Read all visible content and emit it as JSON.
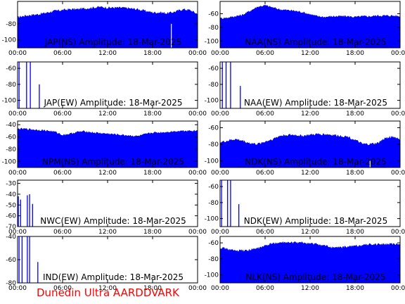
{
  "footer": "Dunedin Ultra AARDDVARK",
  "colors": {
    "fill": "#0000ff",
    "spike": "#ffffff",
    "axis": "#000000",
    "footer": "#ff0000"
  },
  "chart_data": [
    {
      "type": "area",
      "title": "JAP(NS) Amplitude: 18-Mar-2025",
      "x_ticks": [
        "00:00",
        "06:00",
        "12:00",
        "18:00",
        "00:00"
      ],
      "x_range_hours": [
        0,
        24
      ],
      "y_ticks": [
        -80,
        -100
      ],
      "ylim": [
        -110,
        -52
      ],
      "series": [
        {
          "x": [
            0,
            1,
            2,
            3,
            4,
            5,
            6,
            7,
            8,
            9,
            10,
            11,
            12,
            13,
            14,
            15,
            16,
            17,
            18,
            19,
            20,
            21,
            22,
            23,
            24
          ],
          "y": [
            -72,
            -70,
            -69,
            -68,
            -66,
            -64,
            -63,
            -62,
            -62,
            -61,
            -60,
            -59,
            -60,
            -60,
            -60,
            -61,
            -62,
            -64,
            -66,
            -66,
            -67,
            -65,
            -62,
            -63,
            -68
          ]
        }
      ],
      "spikes": [
        {
          "x": 20.5,
          "y": -80
        }
      ]
    },
    {
      "type": "area",
      "title": "NAA(NS) Amplitude: 18-Mar-2025",
      "x_ticks": [
        "00:00",
        "06:00",
        "12:00",
        "18:00",
        "00:00"
      ],
      "x_range_hours": [
        0,
        24
      ],
      "y_ticks": [
        -60,
        -80,
        -100
      ],
      "ylim": [
        -110,
        -42
      ],
      "series": [
        {
          "x": [
            0,
            1,
            2,
            3,
            4,
            5,
            6,
            7,
            8,
            9,
            10,
            11,
            12,
            13,
            14,
            15,
            16,
            17,
            18,
            19,
            20,
            21,
            22,
            23,
            24
          ],
          "y": [
            -67,
            -66,
            -64,
            -62,
            -56,
            -50,
            -48,
            -51,
            -54,
            -55,
            -56,
            -58,
            -61,
            -64,
            -65,
            -64,
            -64,
            -64,
            -65,
            -64,
            -64,
            -63,
            -63,
            -63,
            -64
          ]
        }
      ],
      "spikes": [
        {
          "x": 20.2,
          "y": -110
        }
      ]
    },
    {
      "type": "area",
      "title": "JAP(EW) Amplitude: 18-Mar-2025",
      "x_ticks": [
        "00:00",
        "06:00",
        "12:00",
        "18:00",
        "00:00"
      ],
      "x_range_hours": [
        0,
        24
      ],
      "y_ticks": [
        -60,
        -80,
        -100
      ],
      "ylim": [
        -110,
        -52
      ],
      "series": [],
      "spikes": [
        {
          "x": 0.2,
          "y": -52
        },
        {
          "x": 1.2,
          "y": -52
        },
        {
          "x": 1.7,
          "y": -52
        },
        {
          "x": 2.9,
          "y": -80
        }
      ]
    },
    {
      "type": "area",
      "title": "NAA(EW) Amplitude: 18-Mar-2025",
      "x_ticks": [
        "00:00",
        "06:00",
        "12:00",
        "18:00",
        "00:00"
      ],
      "x_range_hours": [
        0,
        24
      ],
      "y_ticks": [
        -60,
        -80,
        -100
      ],
      "ylim": [
        -110,
        -52
      ],
      "series": [],
      "spikes": [
        {
          "x": 0.3,
          "y": -52
        },
        {
          "x": 0.8,
          "y": -52
        },
        {
          "x": 1.4,
          "y": -52
        },
        {
          "x": 2.7,
          "y": -82
        }
      ]
    },
    {
      "type": "area",
      "title": "NPM(NS) Amplitude: 18-Mar-2025",
      "x_ticks": [
        "00:00",
        "06:00",
        "12:00",
        "18:00",
        "00:00"
      ],
      "x_range_hours": [
        0,
        24
      ],
      "y_ticks": [
        -40,
        -60,
        -80,
        -100
      ],
      "ylim": [
        -110,
        -34
      ],
      "series": [
        {
          "x": [
            0,
            1,
            2,
            3,
            4,
            5,
            6,
            7,
            8,
            9,
            10,
            11,
            12,
            13,
            14,
            15,
            16,
            17,
            18,
            19,
            20,
            21,
            22,
            23,
            24
          ],
          "y": [
            -47,
            -47,
            -48,
            -49,
            -50,
            -52,
            -57,
            -55,
            -52,
            -51,
            -53,
            -54,
            -55,
            -56,
            -57,
            -58,
            -59,
            -56,
            -53,
            -53,
            -52,
            -51,
            -50,
            -50,
            -50
          ]
        }
      ],
      "spikes": [
        {
          "x": 20.3,
          "y": -110
        }
      ]
    },
    {
      "type": "area",
      "title": "NDK(NS) Amplitude: 18-Mar-2025",
      "x_ticks": [
        "00:00",
        "06:00",
        "12:00",
        "18:00",
        "00:00"
      ],
      "x_range_hours": [
        0,
        24
      ],
      "y_ticks": [
        -60,
        -80,
        -100
      ],
      "ylim": [
        -108,
        -52
      ],
      "series": [
        {
          "x": [
            0,
            1,
            2,
            3,
            4,
            5,
            6,
            7,
            8,
            9,
            10,
            11,
            12,
            13,
            14,
            15,
            16,
            17,
            18,
            19,
            20,
            21,
            22,
            23,
            24
          ],
          "y": [
            -78,
            -76,
            -74,
            -76,
            -79,
            -80,
            -77,
            -74,
            -70,
            -69,
            -69,
            -70,
            -69,
            -68,
            -68,
            -69,
            -70,
            -71,
            -75,
            -80,
            -80,
            -79,
            -73,
            -71,
            -74
          ]
        }
      ],
      "spikes": [
        {
          "x": 20.0,
          "y": -100
        }
      ]
    },
    {
      "type": "area",
      "title": "NWC(EW) Amplitude: 18-Mar-2025",
      "x_ticks": [
        "00:00",
        "06:00",
        "12:00",
        "18:00",
        "00:00"
      ],
      "x_range_hours": [
        0,
        24
      ],
      "y_ticks": [
        -30,
        -40,
        -50,
        -60,
        -70
      ],
      "ylim": [
        -70,
        -27
      ],
      "series": [],
      "spikes": [
        {
          "x": 0.1,
          "y": -42
        },
        {
          "x": 0.4,
          "y": -45
        },
        {
          "x": 1.3,
          "y": -41
        },
        {
          "x": 1.6,
          "y": -40
        },
        {
          "x": 2.0,
          "y": -49
        }
      ]
    },
    {
      "type": "area",
      "title": "NDK(EW) Amplitude: 18-Mar-2025",
      "x_ticks": [
        "00:00",
        "06:00",
        "12:00",
        "18:00",
        "00:00"
      ],
      "x_range_hours": [
        0,
        24
      ],
      "y_ticks": [
        -60,
        -80,
        -100
      ],
      "ylim": [
        -110,
        -52
      ],
      "series": [],
      "spikes": [
        {
          "x": 0.2,
          "y": -52
        },
        {
          "x": 1.0,
          "y": -52
        },
        {
          "x": 1.4,
          "y": -52
        },
        {
          "x": 2.5,
          "y": -82
        }
      ]
    },
    {
      "type": "area",
      "title": "IND(EW) Amplitude: 18-Mar-2025",
      "x_ticks": [
        "00:00",
        "06:00",
        "12:00",
        "18:00",
        "00:00"
      ],
      "x_range_hours": [
        0,
        24
      ],
      "y_ticks": [
        -40,
        -60,
        -80
      ],
      "ylim": [
        -80,
        -40
      ],
      "series": [],
      "spikes": [
        {
          "x": 0.2,
          "y": -40
        },
        {
          "x": 0.6,
          "y": -40
        },
        {
          "x": 1.3,
          "y": -40
        },
        {
          "x": 1.6,
          "y": -40
        },
        {
          "x": 2.7,
          "y": -62
        }
      ]
    },
    {
      "type": "area",
      "title": "NLK(NS) Amplitude: 18-Mar-2025",
      "x_ticks": [
        "00:00",
        "06:00",
        "12:00",
        "18:00",
        "00:00"
      ],
      "x_range_hours": [
        0,
        24
      ],
      "y_ticks": [
        -60,
        -80,
        -100
      ],
      "ylim": [
        -110,
        -52
      ],
      "series": [
        {
          "x": [
            0,
            1,
            2,
            3,
            4,
            5,
            6,
            7,
            8,
            9,
            10,
            11,
            12,
            13,
            14,
            15,
            16,
            17,
            18,
            19,
            20,
            21,
            22,
            23,
            24
          ],
          "y": [
            -66,
            -68,
            -70,
            -70,
            -69,
            -67,
            -64,
            -61,
            -60,
            -60,
            -60,
            -60,
            -61,
            -62,
            -64,
            -66,
            -66,
            -65,
            -64,
            -63,
            -62,
            -62,
            -62,
            -62,
            -62
          ]
        }
      ],
      "spikes": [
        {
          "x": 20.3,
          "y": -110
        }
      ]
    }
  ]
}
